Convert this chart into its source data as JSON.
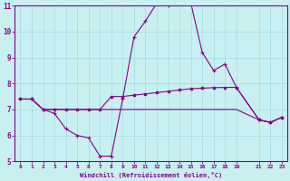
{
  "xlabel": "Windchill (Refroidissement éolien,°C)",
  "bg_color": "#c8f0f0",
  "grid_color": "#a0d8e8",
  "line_color": "#880088",
  "xlim": [
    -0.5,
    23.5
  ],
  "ylim": [
    5,
    11
  ],
  "xticks": [
    0,
    1,
    2,
    3,
    4,
    5,
    6,
    7,
    8,
    9,
    10,
    11,
    12,
    13,
    14,
    15,
    16,
    17,
    18,
    19,
    21,
    22,
    23
  ],
  "yticks": [
    5,
    6,
    7,
    8,
    9,
    10,
    11
  ],
  "line1_x": [
    0,
    1,
    2,
    3,
    4,
    5,
    6,
    7,
    8,
    9,
    10,
    11,
    12,
    13,
    14,
    15,
    16,
    17,
    18,
    19,
    21,
    22,
    23
  ],
  "line1_y": [
    7.4,
    7.4,
    7.0,
    6.85,
    6.25,
    6.0,
    5.9,
    5.2,
    5.2,
    7.4,
    9.8,
    10.4,
    11.1,
    11.0,
    11.2,
    11.1,
    9.2,
    8.5,
    8.75,
    7.85,
    6.6,
    6.5,
    6.7
  ],
  "line2_x": [
    0,
    1,
    2,
    3,
    4,
    5,
    6,
    7,
    8,
    9,
    10,
    11,
    12,
    13,
    14,
    15,
    16,
    17,
    18,
    19,
    21,
    22,
    23
  ],
  "line2_y": [
    7.4,
    7.4,
    7.0,
    7.0,
    7.0,
    7.0,
    7.0,
    7.0,
    7.5,
    7.5,
    7.55,
    7.6,
    7.65,
    7.7,
    7.75,
    7.8,
    7.82,
    7.84,
    7.85,
    7.85,
    6.6,
    6.5,
    6.7
  ],
  "line3_x": [
    0,
    1,
    2,
    3,
    4,
    5,
    6,
    7,
    8,
    9,
    10,
    11,
    12,
    13,
    14,
    15,
    16,
    17,
    18,
    19,
    21,
    22,
    23
  ],
  "line3_y": [
    7.4,
    7.4,
    7.0,
    7.0,
    7.0,
    7.0,
    7.0,
    7.0,
    7.0,
    7.0,
    7.0,
    7.0,
    7.0,
    7.0,
    7.0,
    7.0,
    7.0,
    7.0,
    7.0,
    7.0,
    6.6,
    6.5,
    6.7
  ]
}
